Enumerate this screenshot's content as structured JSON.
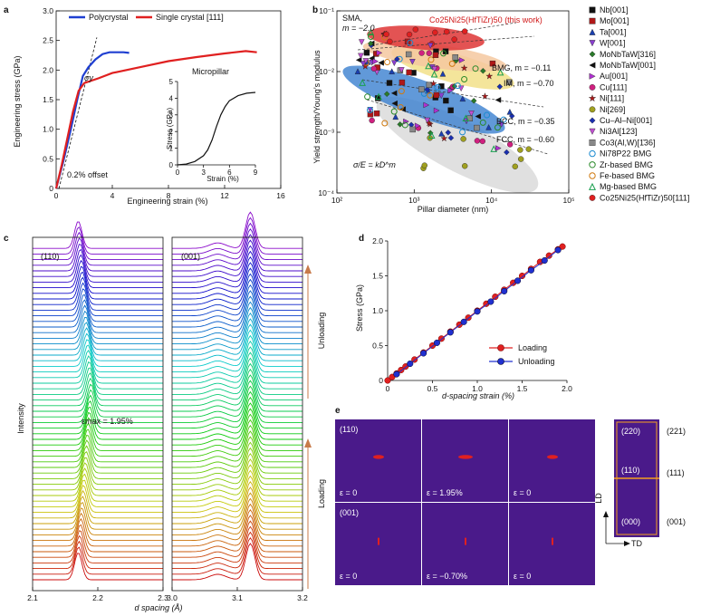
{
  "chart_data": [
    {
      "panel_label": "a",
      "type": "line",
      "xlabel": "Engineering strain (%)",
      "ylabel": "Engineering stress (GPa)",
      "xlim": [
        0,
        16
      ],
      "ylim": [
        0,
        3.0
      ],
      "x_ticks": [
        "0",
        "4",
        "8",
        "12",
        "16"
      ],
      "y_ticks": [
        "0",
        "0.5",
        "1.0",
        "1.5",
        "2.0",
        "2.5",
        "3.0"
      ],
      "annotations": [
        "σy",
        "0.2% offset"
      ],
      "legend": "top-left",
      "series": [
        {
          "name": "Polycrystal",
          "color": "#1f3fd1",
          "x": [
            0,
            0.5,
            1.0,
            1.5,
            1.9,
            2.3,
            2.8,
            3.3,
            3.8,
            4.3,
            4.8,
            5.2
          ],
          "y": [
            0,
            0.45,
            0.95,
            1.5,
            1.9,
            2.05,
            2.18,
            2.27,
            2.3,
            2.3,
            2.3,
            2.29
          ]
        },
        {
          "name": "Single crystal [111]",
          "color": "#e02020",
          "x": [
            0,
            0.4,
            0.8,
            1.2,
            1.6,
            2.0,
            3.0,
            4.0,
            6.0,
            8.0,
            10.0,
            12.0,
            13.5,
            14.3
          ],
          "y": [
            0,
            0.4,
            0.85,
            1.3,
            1.65,
            1.78,
            1.86,
            1.95,
            2.05,
            2.15,
            2.22,
            2.28,
            2.32,
            2.3
          ]
        }
      ],
      "inset": {
        "title": "Micropillar",
        "xlabel": "Strain (%)",
        "ylabel": "Stress (GPa)",
        "xlim": [
          0,
          9
        ],
        "ylim": [
          0,
          5
        ],
        "x_ticks": [
          "0",
          "3",
          "6",
          "9"
        ],
        "y_ticks": [
          "0",
          "1",
          "2",
          "3",
          "4",
          "5"
        ],
        "x": [
          0,
          1,
          2,
          3,
          3.5,
          4,
          4.5,
          5,
          5.5,
          6,
          7,
          8,
          9
        ],
        "y": [
          0,
          0.05,
          0.2,
          0.55,
          0.9,
          1.5,
          2.3,
          3.0,
          3.5,
          3.85,
          4.15,
          4.3,
          4.35
        ]
      }
    },
    {
      "panel_label": "b",
      "type": "scatter",
      "xlabel": "Pillar diameter (nm)",
      "ylabel": "Yield strength/Young’s modulus",
      "x_scale": "log",
      "y_scale": "log",
      "xlim": [
        100,
        100000
      ],
      "ylim": [
        0.0001,
        0.1
      ],
      "x_ticks": [
        "10²",
        "10³",
        "10⁴",
        "10⁵"
      ],
      "y_ticks": [
        "10⁻⁴",
        "10⁻³",
        "10⁻²",
        "10⁻¹"
      ],
      "annotations": [
        "SMA,",
        "m = −2.0",
        "Co25Ni25(HfTiZr)50 (this work)",
        "BMG, m = −0.11",
        "IM, m = −0.70",
        "BCC, m = −0.35",
        "FCC, m = −0.60",
        "σ/E = kD^m"
      ],
      "legend": "right",
      "legend_entries": [
        {
          "name": "Nb[001]",
          "marker": "square",
          "color": "#111111"
        },
        {
          "name": "Mo[001]",
          "marker": "square",
          "color": "#b01818"
        },
        {
          "name": "Ta[001]",
          "marker": "triangle",
          "color": "#1a3fb0"
        },
        {
          "name": "W[001]",
          "marker": "triangle-down",
          "color": "#8a3fd0"
        },
        {
          "name": "MoNbTaW[316]",
          "marker": "diamond",
          "color": "#2a7a2a"
        },
        {
          "name": "MoNbTaW[001]",
          "marker": "triangle-left",
          "color": "#111111"
        },
        {
          "name": "Au[001]",
          "marker": "triangle-right",
          "color": "#b030d0"
        },
        {
          "name": "Cu[111]",
          "marker": "circle",
          "color": "#d02080"
        },
        {
          "name": "Ni[111]",
          "marker": "star",
          "color": "#b01818"
        },
        {
          "name": "Ni[269]",
          "marker": "circle",
          "color": "#a0a020"
        },
        {
          "name": "Cu–Al–Ni[001]",
          "marker": "diamond",
          "color": "#1a2fb0"
        },
        {
          "name": "Ni3Al[123]",
          "marker": "triangle-down",
          "color": "#c050d0"
        },
        {
          "name": "Co3(Al,W)[1̄36]",
          "marker": "square",
          "color": "#888888"
        },
        {
          "name": "Ni78P22 BMG",
          "marker": "circle-open",
          "color": "#1a8ad0"
        },
        {
          "name": "Zr-based BMG",
          "marker": "circle-open",
          "color": "#2a8a2a"
        },
        {
          "name": "Fe-based BMG",
          "marker": "circle-open",
          "color": "#d07a10"
        },
        {
          "name": "Mg-based BMG",
          "marker": "triangle-open",
          "color": "#1aa050"
        },
        {
          "name": "Co25Ni25(HfTiZr)50[111]",
          "marker": "circle",
          "color": "#e02020"
        }
      ]
    },
    {
      "panel_label": "c",
      "type": "line",
      "xlabel": "d spacing (Å)",
      "ylabel": "Intensity",
      "subpanels": [
        {
          "title": "(110)",
          "xlim": [
            2.1,
            2.3
          ],
          "x_ticks": [
            "2.1",
            "2.2",
            "2.3"
          ],
          "peak_max": 2.19,
          "peak_min": 2.17
        },
        {
          "title": "(001)",
          "xlim": [
            3.0,
            3.2
          ],
          "x_ticks": [
            "3.0",
            "3.1",
            "3.2"
          ],
          "peak_max": 3.12,
          "peak_min": 3.12
        }
      ],
      "annotations": [
        "εmax = 1.95%",
        "Loading",
        "Unloading"
      ],
      "n_curves": 60
    },
    {
      "panel_label": "d",
      "type": "scatter",
      "xlabel": "d-spacing strain (%)",
      "ylabel": "Stress (GPa)",
      "xlim": [
        0,
        2.0
      ],
      "ylim": [
        0,
        2.0
      ],
      "x_ticks": [
        "0",
        "0.5",
        "1.0",
        "1.5",
        "2.0"
      ],
      "y_ticks": [
        "0",
        "0.5",
        "1.0",
        "1.5",
        "2.0"
      ],
      "legend": "bottom-right",
      "series": [
        {
          "name": "Loading",
          "color": "#e02020",
          "x": [
            0.0,
            0.05,
            0.1,
            0.15,
            0.2,
            0.3,
            0.4,
            0.5,
            0.6,
            0.7,
            0.8,
            0.9,
            1.0,
            1.1,
            1.2,
            1.3,
            1.4,
            1.5,
            1.6,
            1.7,
            1.8,
            1.9,
            1.95
          ],
          "y": [
            0.0,
            0.05,
            0.1,
            0.15,
            0.2,
            0.3,
            0.4,
            0.5,
            0.6,
            0.7,
            0.8,
            0.9,
            1.0,
            1.1,
            1.2,
            1.3,
            1.4,
            1.5,
            1.6,
            1.7,
            1.79,
            1.88,
            1.92
          ]
        },
        {
          "name": "Unloading",
          "color": "#2030d0",
          "x": [
            1.9,
            1.75,
            1.6,
            1.45,
            1.3,
            1.15,
            1.0,
            0.85,
            0.7,
            0.55,
            0.4,
            0.25,
            0.1
          ],
          "y": [
            1.87,
            1.72,
            1.58,
            1.43,
            1.28,
            1.13,
            0.99,
            0.84,
            0.69,
            0.54,
            0.39,
            0.24,
            0.09
          ]
        }
      ]
    },
    {
      "panel_label": "e",
      "type": "heatmap",
      "cells": [
        {
          "plane": "(110)",
          "strain": "ε = 0"
        },
        {
          "plane": "",
          "strain": "ε = 1.95%"
        },
        {
          "plane": "",
          "strain": "ε = 0"
        },
        {
          "plane": "(001)",
          "strain": "ε = 0"
        },
        {
          "plane": "",
          "strain": "ε = −0.70%"
        },
        {
          "plane": "",
          "strain": "ε = 0"
        }
      ],
      "side": {
        "inner_labels": [
          "(220)",
          "(110)",
          "(000)"
        ],
        "outer_labels": [
          "(221)",
          "(111)",
          "(001)"
        ],
        "axis_x": "TD",
        "axis_y": "LD"
      },
      "background": "#4a1a8a",
      "spot_color": "#e02020"
    }
  ]
}
